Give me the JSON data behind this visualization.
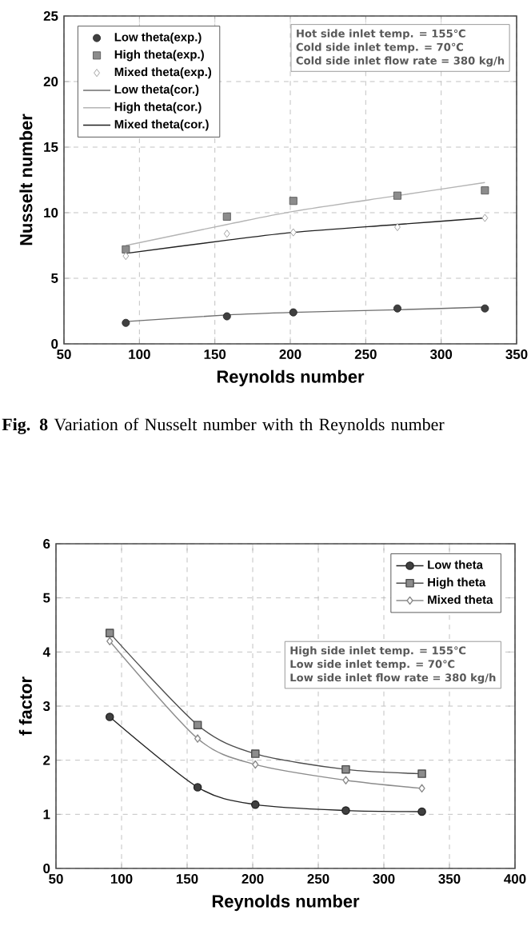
{
  "chart_data": [
    {
      "type": "scatter",
      "xlabel": "Reynolds number",
      "ylabel": "Nusselt number",
      "xlim": [
        50,
        350
      ],
      "xticks": [
        50,
        100,
        150,
        200,
        250,
        300,
        350
      ],
      "ylim": [
        0,
        25
      ],
      "yticks": [
        0,
        5,
        10,
        15,
        20,
        25
      ],
      "grid": true,
      "legend": "top left",
      "x": [
        91,
        158,
        202,
        271,
        329
      ],
      "series": [
        {
          "name": "Low theta(exp.)",
          "type": "scatter",
          "marker": "circle",
          "color": "#404040",
          "values": [
            1.6,
            2.1,
            2.4,
            2.7,
            2.7
          ]
        },
        {
          "name": "High theta(exp.)",
          "type": "scatter",
          "marker": "square",
          "color": "#8c8c8c",
          "values": [
            7.2,
            9.7,
            10.9,
            11.3,
            11.7
          ]
        },
        {
          "name": "Mixed theta(exp.)",
          "type": "scatter",
          "marker": "diamond",
          "color": "#ffffff",
          "values": [
            6.7,
            8.4,
            8.5,
            8.9,
            9.6
          ]
        },
        {
          "name": "Low theta(cor.)",
          "type": "line",
          "color": "#6e6e6e",
          "values": [
            1.7,
            2.2,
            2.4,
            2.6,
            2.8
          ]
        },
        {
          "name": "High theta(cor.)",
          "type": "line",
          "color": "#b4b4b4",
          "values": [
            7.5,
            9.1,
            10.1,
            11.3,
            12.3
          ]
        },
        {
          "name": "Mixed theta(cor.)",
          "type": "line",
          "color": "#202020",
          "values": [
            6.9,
            7.9,
            8.5,
            9.1,
            9.6
          ]
        }
      ],
      "annotations": [
        "Hot side inlet temp. = 155℃",
        "Cold side inlet temp. = 70℃",
        "Cold side inlet flow rate = 380 kg/h",
        "**Fig. 8** Variation of Nusselt number with th Reynolds number"
      ]
    },
    {
      "type": "line",
      "xlabel": "Reynolds number",
      "ylabel": "f factor",
      "xlim": [
        50,
        400
      ],
      "xticks": [
        50,
        100,
        150,
        200,
        250,
        300,
        350,
        400
      ],
      "ylim": [
        0,
        6
      ],
      "yticks": [
        0,
        1,
        2,
        3,
        4,
        5,
        6
      ],
      "grid": true,
      "legend": "top right",
      "x": [
        91,
        158,
        202,
        271,
        329
      ],
      "series": [
        {
          "name": "Low theta",
          "marker": "circle",
          "color": "#404040",
          "values": [
            2.8,
            1.5,
            1.18,
            1.07,
            1.05
          ]
        },
        {
          "name": "High theta",
          "marker": "square",
          "color": "#8c8c8c",
          "values": [
            4.35,
            2.65,
            2.12,
            1.83,
            1.75
          ]
        },
        {
          "name": "Mixed theta",
          "marker": "diamond",
          "color": "#ffffff",
          "values": [
            4.2,
            2.4,
            1.92,
            1.63,
            1.48
          ]
        }
      ],
      "annotations": [
        "High side inlet temp. = 155℃",
        "Low side inlet temp. = 70℃",
        "Low side inlet flow rate = 380 kg/h"
      ]
    }
  ]
}
